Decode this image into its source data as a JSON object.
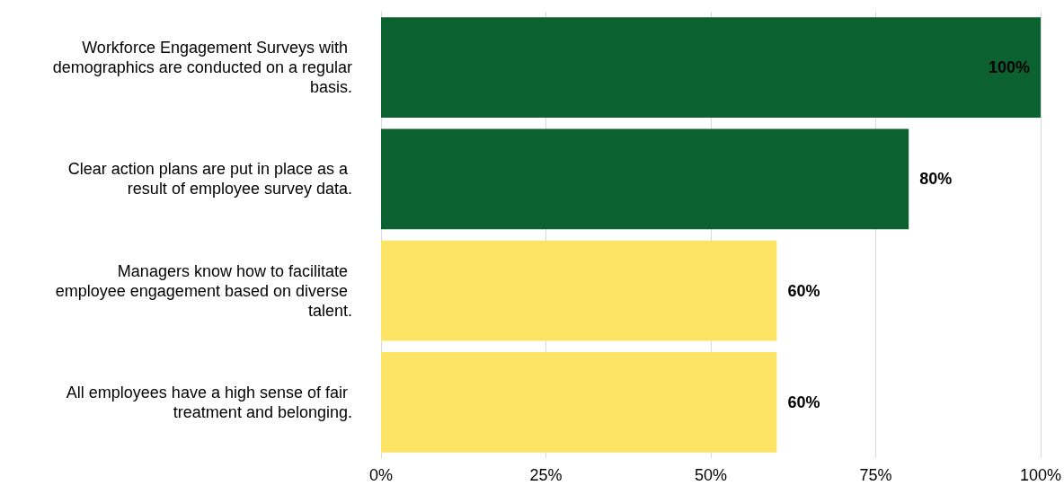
{
  "chart_data": {
    "type": "bar",
    "orientation": "horizontal",
    "categories": [
      "Workforce Engagement Surveys with demographics are conducted on a regular basis.",
      "Clear action plans are put in place as a result of employee survey data.",
      "Managers know how to facilitate employee engagement based on diverse talent.",
      "All employees have a high sense of fair treatment and belonging."
    ],
    "values": [
      100,
      80,
      60,
      60
    ],
    "colors": [
      "#0b6130",
      "#0b6130",
      "#fde464",
      "#fde464"
    ],
    "value_labels": [
      "100%",
      "80%",
      "60%",
      "60%"
    ],
    "xlim": [
      0,
      100
    ],
    "xticks": [
      {
        "value": 0,
        "label": "0%"
      },
      {
        "value": 25,
        "label": "25%"
      },
      {
        "value": 50,
        "label": "50%"
      },
      {
        "value": 75,
        "label": "75%"
      },
      {
        "value": 100,
        "label": "100%"
      }
    ],
    "grid": "x"
  }
}
